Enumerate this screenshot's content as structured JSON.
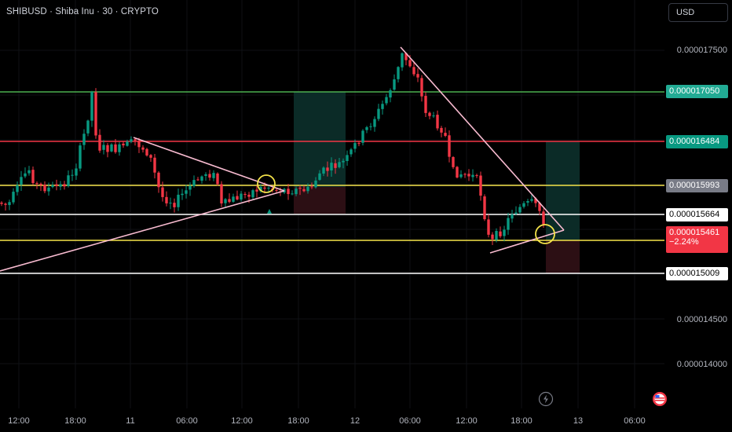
{
  "header": {
    "title": "SHIBUSD · Shiba Inu · 30 · CRYPTO",
    "currency": "USD"
  },
  "chart_data": {
    "type": "candlestick",
    "symbol": "SHIBUSD",
    "interval": "30",
    "y_ticks": [
      "0.000017500",
      "0.000014500",
      "0.000014000"
    ],
    "ylim": [
      1.35e-05,
      1.8e-05
    ],
    "x_ticks": [
      "12:00",
      "18:00",
      "11",
      "06:00",
      "12:00",
      "18:00",
      "12",
      "06:00",
      "12:00",
      "18:00",
      "13",
      "06:00"
    ],
    "price_levels": [
      {
        "id": "green",
        "value": 1.705e-05,
        "label": "0.000017050",
        "line_color": "#4caf50",
        "label_bg": "#22ab94",
        "label_fg": "#ffffff"
      },
      {
        "id": "red",
        "value": 1.6484e-05,
        "label": "0.000016484",
        "line_color": "#f23645",
        "label_bg": "#089981",
        "label_fg": "#ffffff"
      },
      {
        "id": "yellow-upper",
        "value": 1.5993e-05,
        "label": "0.000015993",
        "line_color": "#f5e44a",
        "label_bg": "#787b86",
        "label_fg": "#ffffff"
      },
      {
        "id": "white-upper",
        "value": 1.5664e-05,
        "label": "0.000015664",
        "line_color": "#ffffff",
        "label_bg": "#ffffff",
        "label_fg": "#000000"
      },
      {
        "id": "yellow-lower",
        "value": 1.54e-05,
        "label": "",
        "line_color": "#f5e44a"
      },
      {
        "id": "white-lower",
        "value": 1.5009e-05,
        "label": "0.000015009",
        "line_color": "#ffffff",
        "label_bg": "#ffffff",
        "label_fg": "#000000"
      }
    ],
    "current_price": {
      "label": "0.000015461",
      "change": "−2.24%",
      "bg": "#f23645",
      "fg": "#ffffff"
    },
    "colors": {
      "up": "#089981",
      "down": "#f23645",
      "trendline": "#f8bbd0",
      "circle": "#f5e44a",
      "background": "#000000"
    }
  }
}
